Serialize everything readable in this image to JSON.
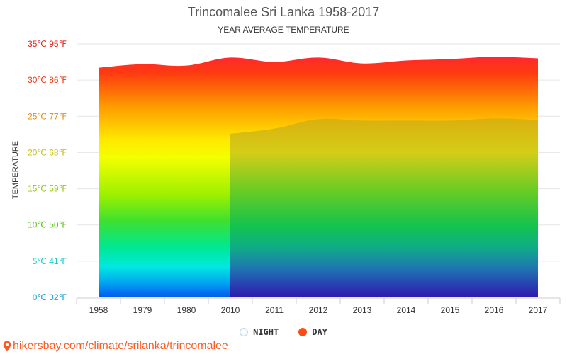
{
  "header": {
    "title": "Trincomalee Sri Lanka 1958-2017",
    "subtitle": "YEAR AVERAGE TEMPERATURE"
  },
  "colors": {
    "day_legend": "#ff4a10",
    "night_legend": "#e3e9f2",
    "link": "#ff5a22"
  },
  "chart_data": {
    "type": "area",
    "title": "Trincomalee Sri Lanka 1958-2017",
    "subtitle": "YEAR AVERAGE TEMPERATURE",
    "ylabel": "TEMPERATURE",
    "xlabel": "",
    "categories": [
      "1958",
      "1979",
      "1980",
      "2010",
      "2011",
      "2012",
      "2013",
      "2014",
      "2015",
      "2016",
      "2017"
    ],
    "ylim": [
      0,
      35
    ],
    "yticks": [
      {
        "value": 0,
        "label": "0℃ 32℉",
        "color": "#1aa3d6"
      },
      {
        "value": 5,
        "label": "5℃ 41℉",
        "color": "#1ac8c8"
      },
      {
        "value": 10,
        "label": "10℃ 50℉",
        "color": "#5bc41a"
      },
      {
        "value": 15,
        "label": "15℃ 59℉",
        "color": "#9dc41a"
      },
      {
        "value": 20,
        "label": "20℃ 68℉",
        "color": "#c6c21a"
      },
      {
        "value": 25,
        "label": "25℃ 77℉",
        "color": "#e88a14"
      },
      {
        "value": 30,
        "label": "30℃ 86℉",
        "color": "#ee3a14"
      },
      {
        "value": 35,
        "label": "35℃ 95℉",
        "color": "#e8201a"
      }
    ],
    "series": [
      {
        "name": "DAY",
        "values": [
          31.7,
          32.2,
          32.0,
          33.1,
          32.5,
          33.1,
          32.3,
          32.7,
          32.9,
          33.2,
          33.0
        ]
      },
      {
        "name": "NIGHT",
        "values": [
          null,
          null,
          null,
          22.6,
          23.3,
          24.6,
          24.4,
          24.4,
          24.4,
          24.7,
          24.5
        ]
      }
    ],
    "grid": true,
    "legend_position": "bottom"
  },
  "footer": {
    "link_text": "hikersbay.com/climate/srilanka/trincomalee",
    "icon": "map-pin-icon"
  }
}
